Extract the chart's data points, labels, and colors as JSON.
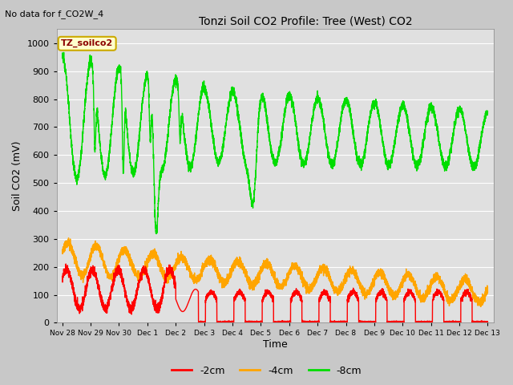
{
  "title": "Tonzi Soil CO2 Profile: Tree (West) CO2",
  "subtitle": "No data for f_CO2W_4",
  "ylabel": "Soil CO2 (mV)",
  "xlabel": "Time",
  "legend_label": "TZ_soilco2",
  "xlim_days": [
    -0.2,
    15.2
  ],
  "ylim": [
    0,
    1050
  ],
  "yticks": [
    0,
    100,
    200,
    300,
    400,
    500,
    600,
    700,
    800,
    900,
    1000
  ],
  "xtick_labels": [
    "Nov 28",
    "Nov 29",
    "Nov 30",
    "Dec 1",
    "Dec 2",
    "Dec 3",
    "Dec 4",
    "Dec 5",
    "Dec 6",
    "Dec 7",
    "Dec 8",
    "Dec 9",
    "Dec 10",
    "Dec 11",
    "Dec 12",
    "Dec 13"
  ],
  "xtick_positions": [
    0,
    1,
    2,
    3,
    4,
    5,
    6,
    7,
    8,
    9,
    10,
    11,
    12,
    13,
    14,
    15
  ],
  "color_2cm": "#ff0000",
  "color_4cm": "#ffa500",
  "color_8cm": "#00dd00",
  "bg_color": "#c8c8c8",
  "plot_bg_color": "#e0e0e0",
  "legend_box_color": "#ffffcc",
  "legend_box_edge": "#ccaa00",
  "grid_color": "#ffffff"
}
